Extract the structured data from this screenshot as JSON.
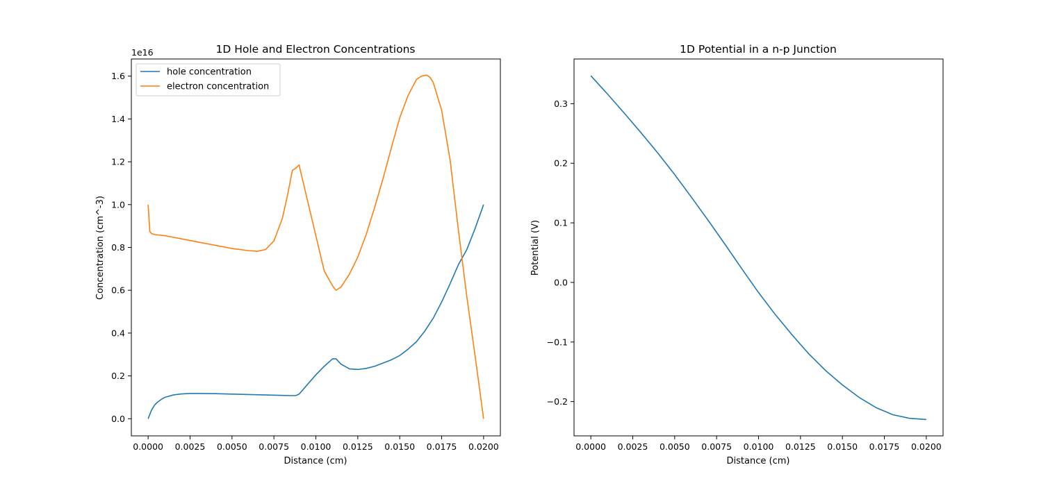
{
  "chart_data": [
    {
      "type": "line",
      "title": "1D Hole and Electron Concentrations",
      "xlabel": "Distance (cm)",
      "ylabel": "Concentration (cm^-3)",
      "offset_text": "1e16",
      "xlim": [
        -0.001,
        0.021
      ],
      "ylim": [
        -0.08,
        1.68
      ],
      "xticks": [
        0.0,
        0.0025,
        0.005,
        0.0075,
        0.01,
        0.0125,
        0.015,
        0.0175,
        0.02
      ],
      "xtick_labels": [
        "0.0000",
        "0.0025",
        "0.0050",
        "0.0075",
        "0.0100",
        "0.0125",
        "0.0150",
        "0.0175",
        "0.0200"
      ],
      "yticks": [
        0.0,
        0.2,
        0.4,
        0.6,
        0.8,
        1.0,
        1.2,
        1.4,
        1.6
      ],
      "ytick_labels": [
        "0.0",
        "0.2",
        "0.4",
        "0.6",
        "0.8",
        "1.0",
        "1.2",
        "1.4",
        "1.6"
      ],
      "legend_position": "upper-left",
      "grid": false,
      "series": [
        {
          "name": "hole concentration",
          "color": "#1f77b4",
          "x": [
            0.0,
            0.0002,
            0.0004,
            0.0006,
            0.0008,
            0.001,
            0.0015,
            0.002,
            0.0025,
            0.003,
            0.004,
            0.005,
            0.006,
            0.007,
            0.008,
            0.0085,
            0.0088,
            0.009,
            0.0095,
            0.01,
            0.0105,
            0.011,
            0.0112,
            0.0115,
            0.012,
            0.0125,
            0.013,
            0.0135,
            0.014,
            0.0145,
            0.015,
            0.0155,
            0.016,
            0.0165,
            0.017,
            0.0175,
            0.018,
            0.0185,
            0.019,
            0.0195,
            0.02
          ],
          "y": [
            0.0,
            0.04,
            0.065,
            0.08,
            0.091,
            0.1,
            0.111,
            0.116,
            0.118,
            0.118,
            0.117,
            0.115,
            0.113,
            0.111,
            0.109,
            0.108,
            0.108,
            0.115,
            0.16,
            0.205,
            0.245,
            0.28,
            0.28,
            0.255,
            0.233,
            0.23,
            0.235,
            0.245,
            0.26,
            0.275,
            0.295,
            0.325,
            0.36,
            0.41,
            0.47,
            0.545,
            0.63,
            0.72,
            0.79,
            0.89,
            1.0
          ]
        },
        {
          "name": "electron concentration",
          "color": "#ff7f0e",
          "x": [
            0.0,
            0.0001,
            0.0002,
            0.0004,
            0.001,
            0.002,
            0.003,
            0.004,
            0.005,
            0.006,
            0.0065,
            0.007,
            0.0075,
            0.008,
            0.0083,
            0.0086,
            0.0088,
            0.009,
            0.0095,
            0.01,
            0.0105,
            0.011,
            0.0112,
            0.0115,
            0.012,
            0.0125,
            0.013,
            0.0135,
            0.014,
            0.0145,
            0.015,
            0.0155,
            0.016,
            0.0163,
            0.0166,
            0.0168,
            0.017,
            0.0175,
            0.018,
            0.0185,
            0.019,
            0.0195,
            0.02
          ],
          "y": [
            1.0,
            0.875,
            0.865,
            0.86,
            0.855,
            0.84,
            0.825,
            0.81,
            0.795,
            0.785,
            0.782,
            0.79,
            0.83,
            0.935,
            1.04,
            1.16,
            1.17,
            1.185,
            1.02,
            0.855,
            0.69,
            0.62,
            0.6,
            0.615,
            0.675,
            0.755,
            0.86,
            0.985,
            1.12,
            1.265,
            1.405,
            1.51,
            1.585,
            1.6,
            1.605,
            1.595,
            1.57,
            1.44,
            1.21,
            0.88,
            0.57,
            0.29,
            0.0
          ]
        }
      ]
    },
    {
      "type": "line",
      "title": "1D Potential in a n-p Junction",
      "xlabel": "Distance (cm)",
      "ylabel": "Potential (V)",
      "xlim": [
        -0.001,
        0.021
      ],
      "ylim": [
        -0.2575,
        0.375
      ],
      "xticks": [
        0.0,
        0.0025,
        0.005,
        0.0075,
        0.01,
        0.0125,
        0.015,
        0.0175,
        0.02
      ],
      "xtick_labels": [
        "0.0000",
        "0.0025",
        "0.0050",
        "0.0075",
        "0.0100",
        "0.0125",
        "0.0150",
        "0.0175",
        "0.0200"
      ],
      "yticks": [
        -0.2,
        -0.1,
        0.0,
        0.1,
        0.2,
        0.3
      ],
      "ytick_labels": [
        "−0.2",
        "−0.1",
        "0.0",
        "0.1",
        "0.2",
        "0.3"
      ],
      "grid": false,
      "series": [
        {
          "color": "#1f77b4",
          "x": [
            0.0,
            0.001,
            0.002,
            0.003,
            0.004,
            0.005,
            0.006,
            0.007,
            0.008,
            0.009,
            0.01,
            0.011,
            0.012,
            0.013,
            0.014,
            0.015,
            0.016,
            0.017,
            0.018,
            0.019,
            0.02
          ],
          "y": [
            0.347,
            0.316,
            0.284,
            0.251,
            0.217,
            0.181,
            0.143,
            0.104,
            0.064,
            0.023,
            -0.017,
            -0.054,
            -0.088,
            -0.12,
            -0.148,
            -0.172,
            -0.193,
            -0.21,
            -0.222,
            -0.228,
            -0.23
          ]
        }
      ]
    }
  ]
}
